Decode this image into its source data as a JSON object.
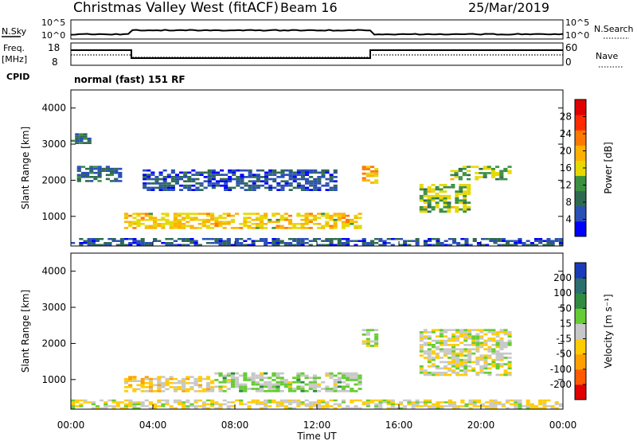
{
  "header": {
    "radar": "Christmas Valley West (fitACF)",
    "beam": "Beam 16",
    "date": "25/Mar/2019"
  },
  "panels": {
    "nsky": {
      "label": "N.Sky",
      "ticks": [
        "10^5",
        "10^0"
      ],
      "right_label": "N.Search",
      "right_ticks": [
        "10^5",
        "10^0"
      ]
    },
    "freq": {
      "label_line1": "Freq.",
      "label_line2": "[MHz]",
      "ticks": [
        18,
        8
      ],
      "right_label": "Nave",
      "right_ticks": [
        60,
        0
      ]
    },
    "cpid": {
      "label": "CPID",
      "text": "normal (fast) 151 RF"
    }
  },
  "colors": {
    "power": [
      "#0000ff",
      "#2a4fb6",
      "#2e6a50",
      "#3c9040",
      "#e6d800",
      "#ffb000",
      "#ff7800",
      "#ff2a00",
      "#e00000"
    ],
    "velocity": [
      "#e00000",
      "#ff5a00",
      "#ffa000",
      "#ffcc00",
      "#c8c8c8",
      "#66cc33",
      "#2e8b40",
      "#2a6e70",
      "#1a3cb8"
    ],
    "ground_scatter": "#a8a8a8"
  },
  "chart_data": [
    {
      "type": "heatmap",
      "name": "power",
      "ylabel": "Slant Range [km]",
      "xlabel": "",
      "x_ticks": [
        "00:00",
        "04:00",
        "08:00",
        "12:00",
        "16:00",
        "20:00",
        "00:00"
      ],
      "x_range_hours": [
        0,
        24
      ],
      "y_ticks": [
        1000,
        2000,
        3000,
        4000
      ],
      "ylim": [
        180,
        4500
      ],
      "colorbar": {
        "label": "Power [dB]",
        "ticks": [
          4,
          8,
          12,
          16,
          20,
          24,
          28
        ],
        "range": [
          0,
          32
        ]
      },
      "regions": [
        {
          "t0": 2.6,
          "t1": 14.2,
          "r0": 650,
          "r1": 1100,
          "level": 18
        },
        {
          "t0": 14.2,
          "t1": 15.0,
          "r0": 1900,
          "r1": 2400,
          "level": 20
        },
        {
          "t0": 17.0,
          "t1": 19.5,
          "r0": 1100,
          "r1": 1900,
          "level": 14
        },
        {
          "t0": 18.5,
          "t1": 21.5,
          "r0": 2000,
          "r1": 2400,
          "level": 14
        },
        {
          "t0": 0.3,
          "t1": 2.5,
          "r0": 1950,
          "r1": 2400,
          "level": 8
        },
        {
          "t0": 0.0,
          "t1": 1.0,
          "r0": 3000,
          "r1": 3300,
          "level": 8
        },
        {
          "t0": 3.5,
          "t1": 13.0,
          "r0": 1700,
          "r1": 2300,
          "level": 6
        },
        {
          "t0": 0.0,
          "t1": 24.0,
          "r0": 180,
          "r1": 400,
          "level": 6
        }
      ]
    },
    {
      "type": "heatmap",
      "name": "velocity",
      "ylabel": "Slant Range [km]",
      "xlabel": "Time UT",
      "x_ticks": [
        "00:00",
        "04:00",
        "08:00",
        "12:00",
        "16:00",
        "20:00",
        "00:00"
      ],
      "x_range_hours": [
        0,
        24
      ],
      "y_ticks": [
        1000,
        2000,
        3000,
        4000
      ],
      "ylim": [
        180,
        4500
      ],
      "colorbar": {
        "label": "Velocity [m s⁻¹]",
        "ticks": [
          -200,
          -100,
          -50,
          -15,
          15,
          50,
          100,
          200
        ],
        "range": [
          -250,
          250
        ]
      },
      "regions": [
        {
          "t0": 2.6,
          "t1": 7.0,
          "r0": 650,
          "r1": 1100,
          "level": -40
        },
        {
          "t0": 7.0,
          "t1": 14.2,
          "r0": 650,
          "r1": 1200,
          "level": 30
        },
        {
          "t0": 14.2,
          "t1": 15.0,
          "r0": 1900,
          "r1": 2400,
          "level": 0
        },
        {
          "t0": 17.0,
          "t1": 21.5,
          "r0": 1100,
          "r1": 2400,
          "level": 0
        },
        {
          "t0": 0.0,
          "t1": 24.0,
          "r0": 180,
          "r1": 450,
          "level": -20
        }
      ]
    }
  ]
}
